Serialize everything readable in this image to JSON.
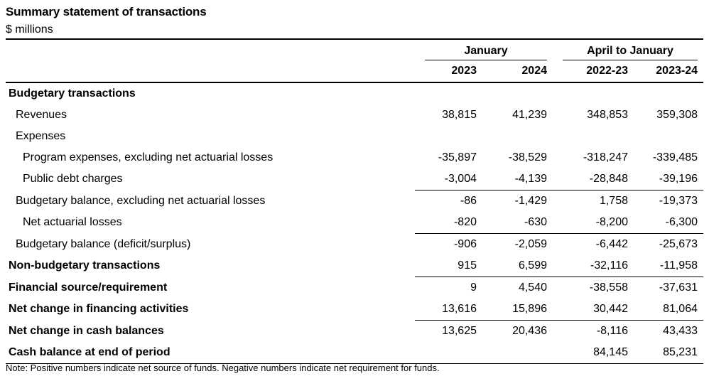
{
  "title": "Summary statement of transactions",
  "units": "$ millions",
  "header": {
    "groups": [
      "January",
      "April to January"
    ],
    "years": [
      "2023",
      "2024",
      "2022-23",
      "2023-24"
    ]
  },
  "rows": [
    {
      "label": "Budgetary transactions",
      "level": 0,
      "values": [
        "",
        "",
        "",
        ""
      ]
    },
    {
      "label": "Revenues",
      "level": 1,
      "values": [
        "38,815",
        "41,239",
        "348,853",
        "359,308"
      ]
    },
    {
      "label": "Expenses",
      "level": 1,
      "values": [
        "",
        "",
        "",
        ""
      ]
    },
    {
      "label": "Program expenses, excluding net actuarial losses",
      "level": 2,
      "values": [
        "-35,897",
        "-38,529",
        "-318,247",
        "-339,485"
      ]
    },
    {
      "label": "Public debt charges",
      "level": 2,
      "values": [
        "-3,004",
        "-4,139",
        "-28,848",
        "-39,196"
      ]
    },
    {
      "label": "Budgetary balance, excluding net actuarial losses",
      "level": 1,
      "values": [
        "-86",
        "-1,429",
        "1,758",
        "-19,373"
      ]
    },
    {
      "label": "Net actuarial losses",
      "level": 2,
      "values": [
        "-820",
        "-630",
        "-8,200",
        "-6,300"
      ]
    },
    {
      "label": "Budgetary balance (deficit/surplus)",
      "level": 1,
      "values": [
        "-906",
        "-2,059",
        "-6,442",
        "-25,673"
      ]
    },
    {
      "label": "Non-budgetary transactions",
      "level": 0,
      "values": [
        "915",
        "6,599",
        "-32,116",
        "-11,958"
      ]
    },
    {
      "label": "Financial source/requirement",
      "level": 0,
      "values": [
        "9",
        "4,540",
        "-38,558",
        "-37,631"
      ]
    },
    {
      "label": "Net change in financing activities",
      "level": 0,
      "values": [
        "13,616",
        "15,896",
        "30,442",
        "81,064"
      ]
    },
    {
      "label": "Net change in cash balances",
      "level": 0,
      "values": [
        "13,625",
        "20,436",
        "-8,116",
        "43,433"
      ]
    },
    {
      "label": "Cash balance at end of period",
      "level": 0,
      "values": [
        "",
        "",
        "84,145",
        "85,231"
      ]
    }
  ],
  "note": "Note: Positive numbers indicate net source of funds. Negative numbers indicate net requirement for funds."
}
